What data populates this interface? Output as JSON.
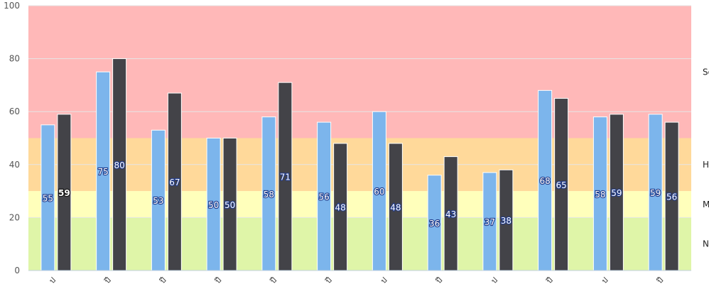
{
  "chart_data": {
    "type": "bar",
    "title": "",
    "xlabel": "",
    "ylabel": "",
    "ylim": [
      0,
      100
    ],
    "yticks": [
      "0",
      "20",
      "40",
      "60",
      "80",
      "100"
    ],
    "categories": [
      "ป",
      "ปี",
      "ปี",
      "ปี",
      "ปี",
      "ปี",
      "ป",
      "ปี",
      "ป",
      "ปี",
      "ป",
      "ปี"
    ],
    "series": [
      {
        "color": "#7cb5ec",
        "values": [
          55,
          75,
          53,
          50,
          58,
          56,
          60,
          36,
          37,
          68,
          58,
          59
        ]
      },
      {
        "color": "#434348",
        "values": [
          59,
          80,
          67,
          50,
          71,
          48,
          48,
          43,
          38,
          65,
          59,
          56
        ]
      }
    ],
    "bands": [
      {
        "from": 0,
        "to": 20,
        "color": "#dff5a8",
        "label": "N"
      },
      {
        "from": 20,
        "to": 30,
        "color": "#ffffbb",
        "label": "M"
      },
      {
        "from": 30,
        "to": 50,
        "color": "#ffd99a",
        "label": "H"
      },
      {
        "from": 50,
        "to": 100,
        "color": "#ffb8b8",
        "label": "Se"
      }
    ],
    "grid": true,
    "data_labels": true
  }
}
